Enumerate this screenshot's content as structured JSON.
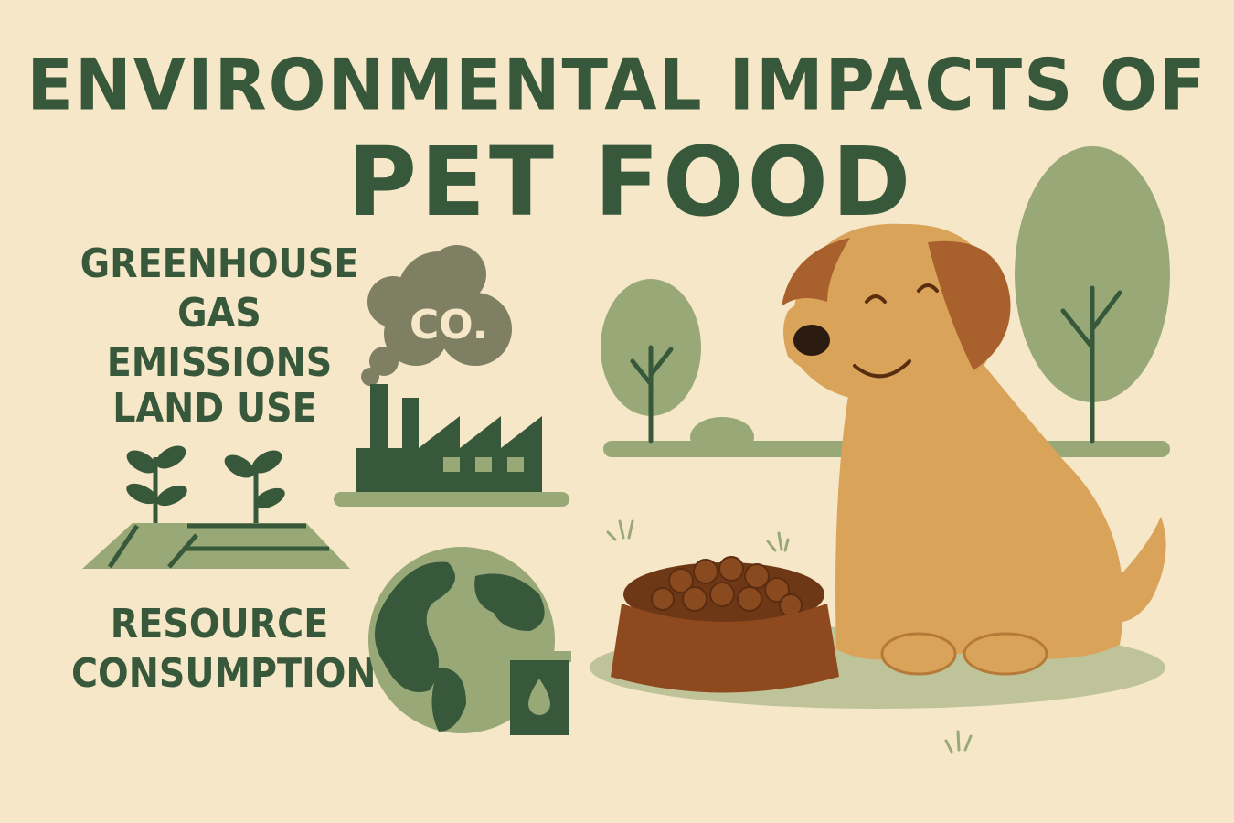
{
  "title": {
    "line1": "ENVIRONMENTAL IMPACTS OF",
    "line2": "PET FOOD"
  },
  "impacts": [
    {
      "label_line1": "GREENHOUSE",
      "label_line2": "GAS EMISSIONS",
      "icon": "factory-co2-icon"
    },
    {
      "label_line1": "LAND USE",
      "label_line2": "",
      "icon": "sprouting-field-icon"
    },
    {
      "label_line1": "RESOURCE",
      "label_line2": "CONSUMPTION",
      "icon": "globe-water-can-icon"
    }
  ],
  "cloud_text": "CO.",
  "colors": {
    "background": "#f6e7c8",
    "dark_green": "#37583a",
    "light_green": "#98a877",
    "dog": "#d9a35a",
    "dog_ear": "#a8602c",
    "bowl": "#8e4a1e",
    "smoke": "#7f7f64"
  }
}
